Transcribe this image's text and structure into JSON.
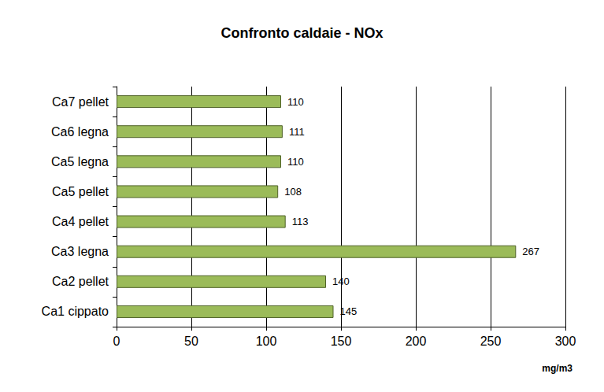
{
  "chart_data": {
    "type": "bar",
    "orientation": "horizontal",
    "title": "Confronto caldaie - NOx",
    "xlabel": "mg/m3",
    "categories": [
      "Ca1 cippato",
      "Ca2 pellet",
      "Ca3 legna",
      "Ca4 pellet",
      "Ca5 pellet",
      "Ca5 legna",
      "Ca6 legna",
      "Ca7 pellet"
    ],
    "values": [
      145,
      140,
      267,
      113,
      108,
      110,
      111,
      110
    ],
    "color": "#9bbb59",
    "xlim": [
      0,
      300
    ],
    "xticks": [
      0,
      50,
      100,
      150,
      200,
      250,
      300
    ],
    "grid": true,
    "data_labels": true
  }
}
